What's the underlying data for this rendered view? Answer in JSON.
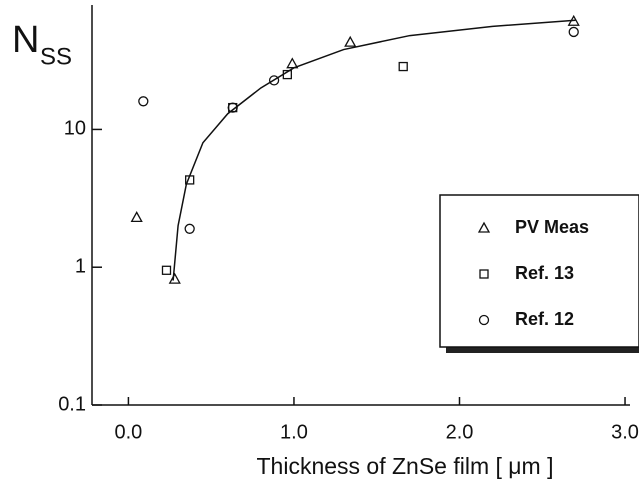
{
  "chart_data": {
    "type": "scatter",
    "y_label": "N",
    "y_label_sub": "SS",
    "x_label": "Thickness of ZnSe film  [ μm ]",
    "xlim": [
      -0.22,
      3.03
    ],
    "ylim": [
      0.1,
      80
    ],
    "log_y": true,
    "xticks": [
      {
        "value": 0,
        "label": "0.0"
      },
      {
        "value": 1,
        "label": "1.0"
      },
      {
        "value": 2,
        "label": "2.0"
      },
      {
        "value": 3,
        "label": "3.0"
      }
    ],
    "yticks": [
      0.1,
      1,
      10
    ],
    "series": [
      {
        "name": "PV Meas",
        "marker": "triangle",
        "color": "#111111",
        "x": [
          0.05,
          0.28,
          0.99,
          1.34,
          2.69
        ],
        "values": [
          2.3,
          0.82,
          30,
          43,
          61
        ]
      },
      {
        "name": "Ref. 13",
        "marker": "square",
        "color": "#111111",
        "x": [
          0.23,
          0.37,
          0.63,
          0.96,
          1.66
        ],
        "values": [
          0.95,
          4.3,
          14.4,
          25,
          28.6
        ]
      },
      {
        "name": "Ref. 12",
        "marker": "circle",
        "color": "#111111",
        "x": [
          0.09,
          0.37,
          0.63,
          0.88,
          2.69
        ],
        "values": [
          16,
          1.9,
          14.4,
          22.7,
          51
        ]
      }
    ],
    "curve": {
      "color": "#111111",
      "x": [
        0.27,
        0.3,
        0.35,
        0.45,
        0.6,
        0.8,
        1.0,
        1.3,
        1.7,
        2.2,
        2.7
      ],
      "values": [
        0.8,
        2,
        4,
        8,
        13,
        20,
        28,
        38,
        48,
        56,
        62
      ]
    }
  }
}
